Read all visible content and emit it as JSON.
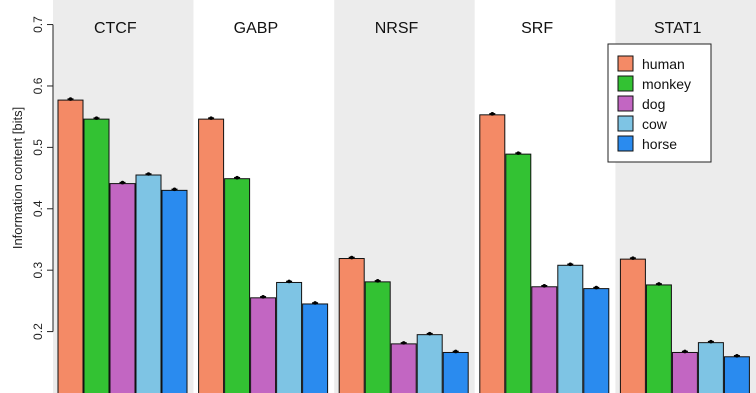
{
  "chart_data": {
    "type": "bar",
    "title": "",
    "ylabel": "Information content [bits]",
    "xlabel": "",
    "ylim": [
      0.1,
      0.74
    ],
    "yticks": [
      0.2,
      0.3,
      0.4,
      0.5,
      0.6,
      0.7
    ],
    "ytick_labels": [
      "0.2",
      "0.3",
      "0.4",
      "0.5",
      "0.6",
      "0.7"
    ],
    "categories": [
      "CTCF",
      "GABP",
      "NRSF",
      "SRF",
      "STAT1"
    ],
    "panel_shading": [
      "#ececec",
      "#ffffff",
      "#ececec",
      "#ffffff",
      "#ececec"
    ],
    "series": [
      {
        "name": "human",
        "color": "#f48a66",
        "values": [
          0.577,
          0.546,
          0.319,
          0.553,
          0.318
        ]
      },
      {
        "name": "monkey",
        "color": "#33c233",
        "values": [
          0.546,
          0.449,
          0.281,
          0.489,
          0.276
        ]
      },
      {
        "name": "dog",
        "color": "#c266c2",
        "values": [
          0.441,
          0.255,
          0.18,
          0.273,
          0.166
        ]
      },
      {
        "name": "cow",
        "color": "#7ec4e4",
        "values": [
          0.455,
          0.28,
          0.195,
          0.308,
          0.182
        ]
      },
      {
        "name": "horse",
        "color": "#2a8bef",
        "values": [
          0.43,
          0.245,
          0.166,
          0.27,
          0.159
        ]
      }
    ],
    "legend_position": "top-right",
    "error_markers": true,
    "grid": false
  }
}
